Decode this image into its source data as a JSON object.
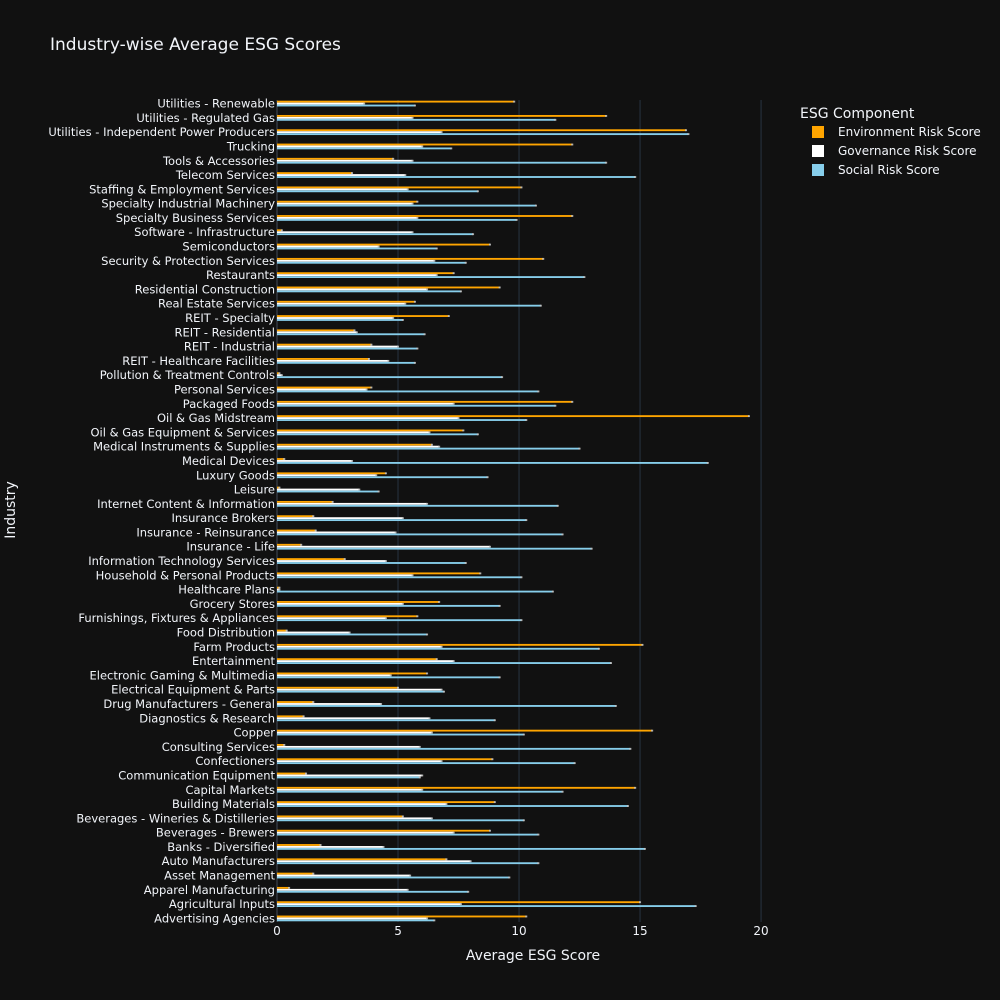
{
  "chart_data": {
    "type": "bar",
    "orientation": "horizontal",
    "title": "Industry-wise Average ESG Scores",
    "xlabel": "Average ESG Score",
    "ylabel": "Industry",
    "xlim": [
      0,
      20.7
    ],
    "xticks": [
      0,
      5,
      10,
      15,
      20
    ],
    "grid": true,
    "legend_title": "ESG Component",
    "legend_position": "top-right",
    "labeled_categories": [
      "Advertising Agencies",
      "Agricultural Inputs",
      "Apparel Manufacturing",
      "Asset Management",
      "Auto Manufacturers",
      "Banks - Diversified",
      "Beverages - Brewers",
      "Beverages - Wineries & Distilleries",
      "Building Materials",
      "Capital Markets",
      "Communication Equipment",
      "Confectioners",
      "Consulting Services",
      "Copper",
      "Diagnostics & Research",
      "Drug Manufacturers - General",
      "Electrical Equipment & Parts",
      "Electronic Gaming & Multimedia",
      "Entertainment",
      "Farm Products",
      "Food Distribution",
      "Furnishings, Fixtures & Appliances",
      "Grocery Stores",
      "Healthcare Plans",
      "Household & Personal Products",
      "Information Technology Services",
      "Insurance - Life",
      "Insurance - Reinsurance",
      "Insurance Brokers",
      "Internet Content & Information",
      "Leisure",
      "Luxury Goods",
      "Medical Devices",
      "Medical Instruments & Supplies",
      "Oil & Gas Equipment & Services",
      "Oil & Gas Midstream",
      "Packaged Foods",
      "Personal Services",
      "Pollution & Treatment Controls",
      "REIT - Healthcare Facilities",
      "REIT - Industrial",
      "REIT - Residential",
      "REIT - Specialty",
      "Real Estate Services",
      "Residential Construction",
      "Restaurants",
      "Security & Protection Services",
      "Semiconductors",
      "Software - Infrastructure",
      "Specialty Business Services",
      "Specialty Industrial Machinery",
      "Staffing & Employment Services",
      "Telecom Services",
      "Tools & Accessories",
      "Trucking",
      "Utilities - Independent Power Producers",
      "Utilities - Regulated Gas",
      "Utilities - Renewable"
    ],
    "category_rows": 115,
    "series": [
      {
        "name": "Environment Risk Score",
        "color": "#FFA500",
        "values": [
          10.3,
          15.0,
          0.5,
          1.5,
          7.0,
          1.8,
          8.8,
          5.2,
          9.0,
          14.8,
          1.2,
          8.9,
          0.3,
          15.5,
          1.1,
          1.5,
          5.0,
          6.2,
          6.6,
          15.1,
          0.4,
          5.8,
          6.7,
          0.1,
          8.4,
          2.8,
          1.0,
          1.6,
          1.5,
          2.3,
          0.1,
          4.5,
          0.3,
          6.4,
          7.7,
          19.5,
          12.2,
          3.9,
          0.1,
          3.8,
          3.9,
          3.2,
          7.1,
          5.7,
          9.2,
          7.3,
          11.0,
          8.8,
          0.2,
          12.2,
          5.8,
          10.1,
          3.1,
          4.8,
          12.2,
          16.9,
          13.6,
          9.8
        ]
      },
      {
        "name": "Governance Risk Score",
        "color": "#FFFFFF",
        "values": [
          6.2,
          7.6,
          5.4,
          5.5,
          8.0,
          4.4,
          7.3,
          6.4,
          7.0,
          6.0,
          6.0,
          6.8,
          5.9,
          6.4,
          6.3,
          4.3,
          6.8,
          4.7,
          7.3,
          6.8,
          3.0,
          4.5,
          5.2,
          0.1,
          5.6,
          4.5,
          8.8,
          4.9,
          5.2,
          6.2,
          3.4,
          4.1,
          3.1,
          6.7,
          6.3,
          7.5,
          7.3,
          3.7,
          0.2,
          4.6,
          5.0,
          3.3,
          4.8,
          5.3,
          6.2,
          6.6,
          6.5,
          4.2,
          5.6,
          5.8,
          5.6,
          5.4,
          5.3,
          5.6,
          6.0,
          6.8,
          5.6,
          3.6
        ]
      },
      {
        "name": "Social Risk Score",
        "color": "#87CEEB",
        "values": [
          6.5,
          17.3,
          7.9,
          9.6,
          10.8,
          15.2,
          10.8,
          10.2,
          14.5,
          11.8,
          5.9,
          12.3,
          14.6,
          10.2,
          9.0,
          14.0,
          6.9,
          9.2,
          13.8,
          13.3,
          6.2,
          10.1,
          9.2,
          11.4,
          10.1,
          7.8,
          13.0,
          11.8,
          10.3,
          11.6,
          4.2,
          8.7,
          17.8,
          12.5,
          8.3,
          10.3,
          11.5,
          10.8,
          9.3,
          5.7,
          5.8,
          6.1,
          5.2,
          10.9,
          7.6,
          12.7,
          7.8,
          6.6,
          8.1,
          9.9,
          10.7,
          8.3,
          14.8,
          13.6,
          7.2,
          17.0,
          11.5,
          5.7
        ]
      }
    ]
  }
}
